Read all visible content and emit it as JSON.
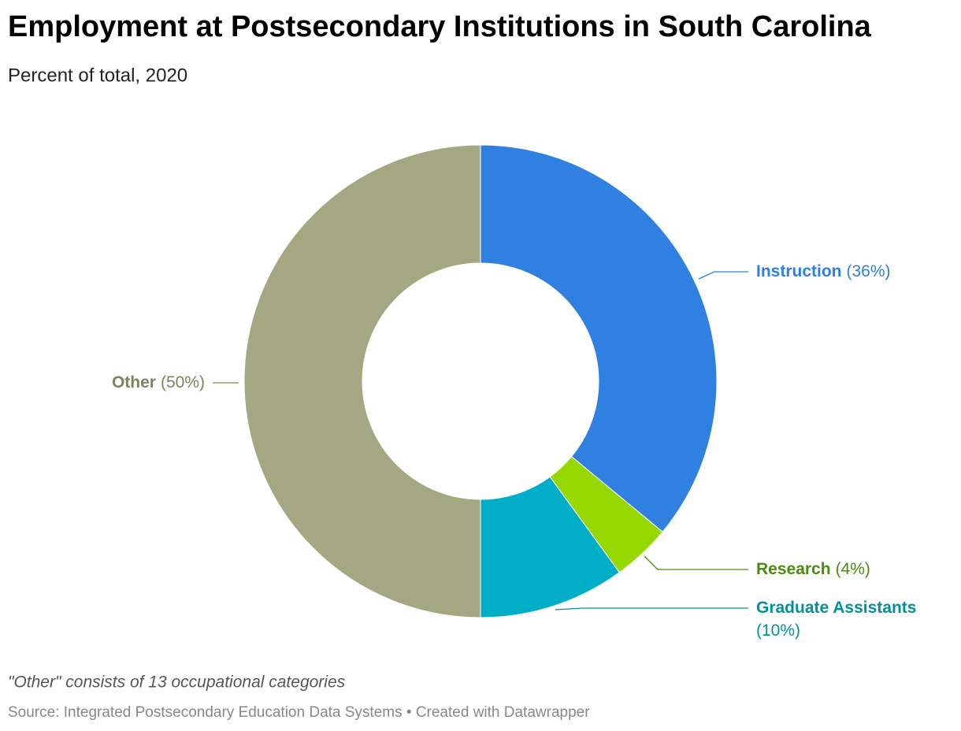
{
  "chart_data": {
    "type": "donut",
    "title": "Employment at Postsecondary Institutions in South Carolina",
    "subtitle": "Percent of total, 2020",
    "categories": [
      "Instruction",
      "Research",
      "Graduate Assistants",
      "Other"
    ],
    "values": [
      36,
      4,
      10,
      50
    ],
    "value_labels": [
      "(36%)",
      "(4%)",
      "(10%)",
      "(50%)"
    ],
    "colors": [
      "#3080e2",
      "#96d800",
      "#00aec8",
      "#a3a883"
    ],
    "label_colors": [
      "#2f7fe0",
      "#4a8a10",
      "#00909e",
      "#7d8260"
    ],
    "note": "\"Other\" consists of 13 occupational categories",
    "source": "Source: Integrated Postsecondary Education Data Systems • Created with Datawrapper"
  }
}
